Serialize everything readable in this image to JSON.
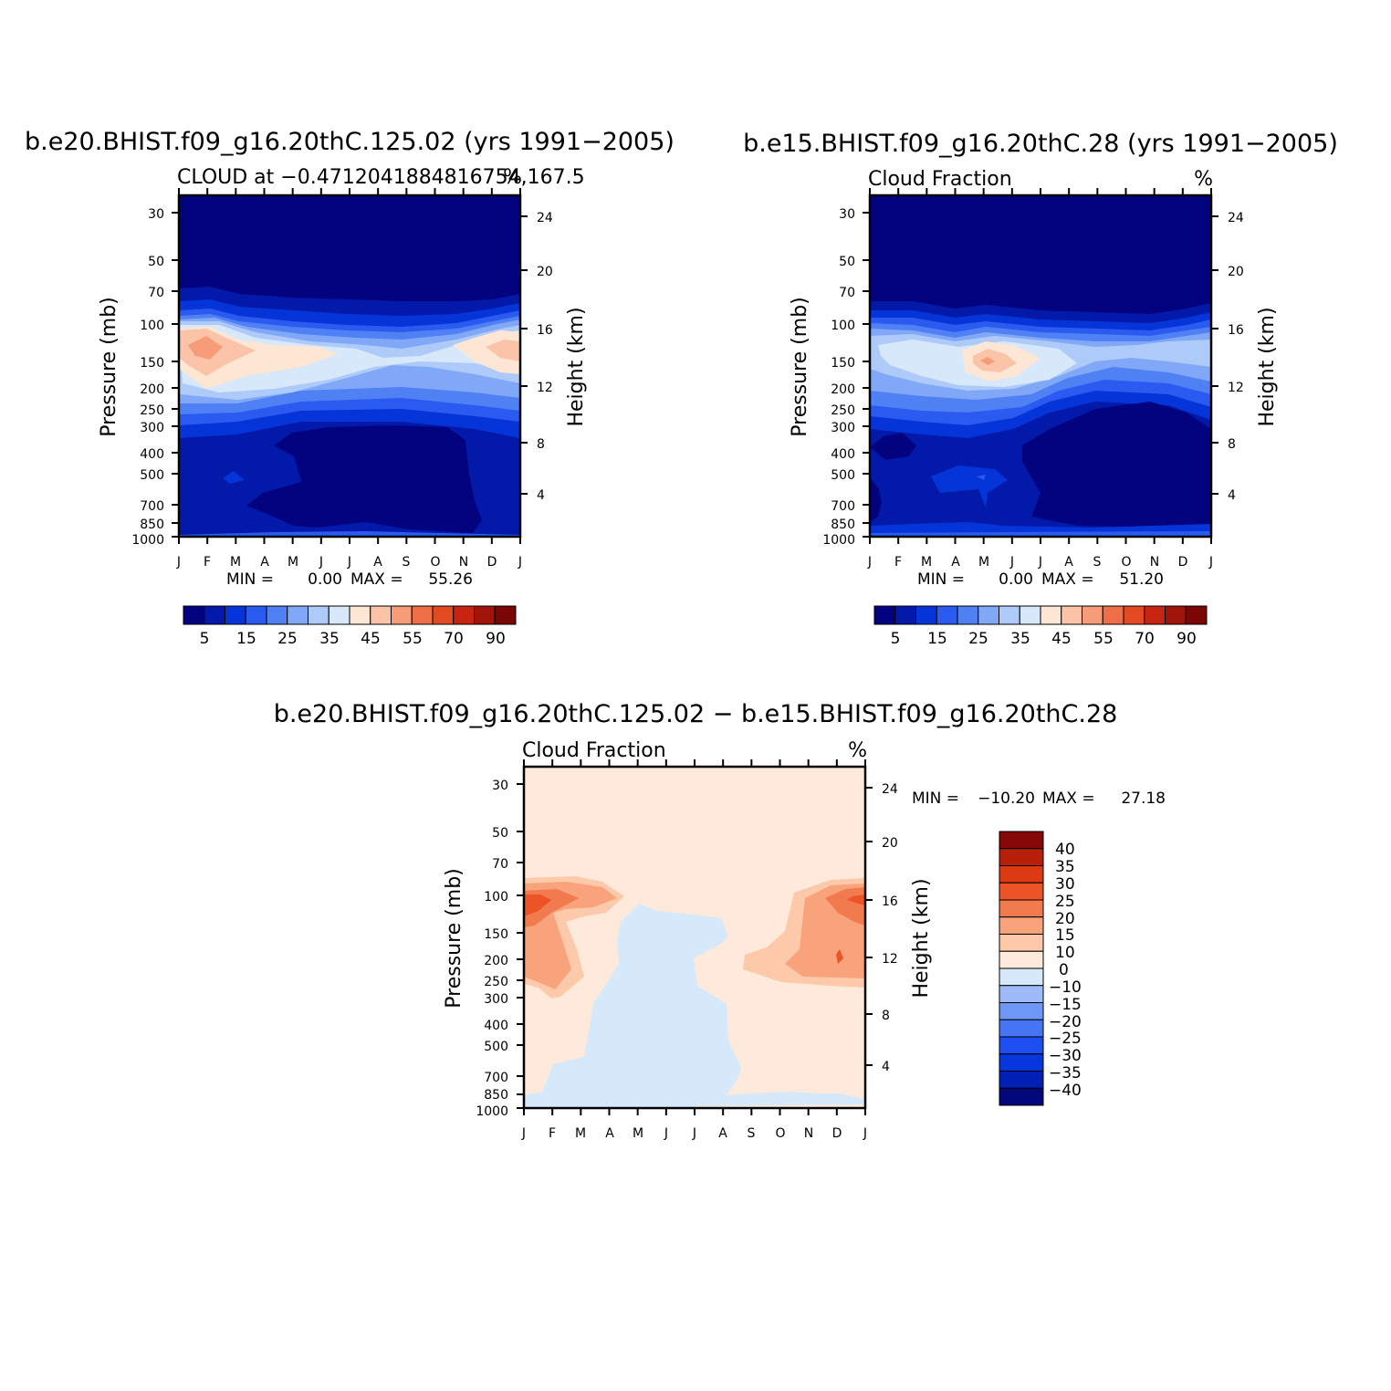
{
  "chart_data": [
    {
      "type": "contour",
      "id": "top-left",
      "title": "b.e20.BHIST.f09_g16.20thC.125.02 (yrs 1991−2005)",
      "subtitle_left": "CLOUD at −0.4712041884816754,167.5",
      "subtitle_right": "%",
      "ylabel": "Pressure (mb)",
      "y2label": "Height (km)",
      "pressure_ticks": [
        "30",
        "50",
        "70",
        "100",
        "150",
        "200",
        "250",
        "300",
        "400",
        "500",
        "700",
        "850",
        "1000"
      ],
      "height_ticks": [
        "24",
        "20",
        "16",
        "12",
        "8",
        "4"
      ],
      "months": [
        "J",
        "F",
        "M",
        "A",
        "M",
        "J",
        "J",
        "A",
        "S",
        "O",
        "N",
        "D",
        "J"
      ],
      "min_label": "MIN =",
      "min_value": "0.00",
      "max_label": "MAX =",
      "max_value": "55.26",
      "colorbar_labels": [
        "5",
        "15",
        "25",
        "35",
        "45",
        "55",
        "70",
        "90"
      ],
      "contour_levels": [
        5,
        10,
        15,
        20,
        25,
        30,
        35,
        40,
        45,
        50,
        55,
        60,
        70,
        80,
        90
      ],
      "cloud_max_height_hPa": 130,
      "cloud_max_value": 55.26
    },
    {
      "type": "contour",
      "id": "top-right",
      "title": "b.e15.BHIST.f09_g16.20thC.28 (yrs 1991−2005)",
      "subtitle_left": "Cloud Fraction",
      "subtitle_right": "%",
      "ylabel": "Pressure (mb)",
      "y2label": "Height (km)",
      "pressure_ticks": [
        "30",
        "50",
        "70",
        "100",
        "150",
        "200",
        "250",
        "300",
        "400",
        "500",
        "700",
        "850",
        "1000"
      ],
      "height_ticks": [
        "24",
        "20",
        "16",
        "12",
        "8",
        "4"
      ],
      "months": [
        "J",
        "F",
        "M",
        "A",
        "M",
        "J",
        "J",
        "A",
        "S",
        "O",
        "N",
        "D",
        "J"
      ],
      "min_label": "MIN =",
      "min_value": "0.00",
      "max_label": "MAX =",
      "max_value": "51.20",
      "colorbar_labels": [
        "5",
        "15",
        "25",
        "35",
        "45",
        "55",
        "70",
        "90"
      ],
      "contour_levels": [
        5,
        10,
        15,
        20,
        25,
        30,
        35,
        40,
        45,
        50,
        55,
        60,
        70,
        80,
        90
      ],
      "cloud_max_height_hPa": 150,
      "cloud_max_value": 51.2
    },
    {
      "type": "contour",
      "id": "bottom",
      "title": "b.e20.BHIST.f09_g16.20thC.125.02 − b.e15.BHIST.f09_g16.20thC.28",
      "subtitle_left": "Cloud Fraction",
      "subtitle_right": "%",
      "ylabel": "Pressure (mb)",
      "y2label": "Height (km)",
      "pressure_ticks": [
        "30",
        "50",
        "70",
        "100",
        "150",
        "200",
        "250",
        "300",
        "400",
        "500",
        "700",
        "850",
        "1000"
      ],
      "height_ticks": [
        "24",
        "20",
        "16",
        "12",
        "8",
        "4"
      ],
      "months": [
        "J",
        "F",
        "M",
        "A",
        "M",
        "J",
        "J",
        "A",
        "S",
        "O",
        "N",
        "D",
        "J"
      ],
      "min_label": "MIN =",
      "min_value": "−10.20",
      "max_label": "MAX =",
      "max_value": "27.18",
      "colorbar_labels": [
        "40",
        "35",
        "30",
        "25",
        "20",
        "15",
        "10",
        "0",
        "−10",
        "−15",
        "−20",
        "−25",
        "−30",
        "−35",
        "−40"
      ],
      "contour_levels": [
        -40,
        -35,
        -30,
        -25,
        -20,
        -15,
        -10,
        0,
        10,
        15,
        20,
        25,
        30,
        35,
        40
      ]
    }
  ],
  "colors": {
    "abs_scale": [
      "#03037f",
      "#0219a9",
      "#0535d8",
      "#2a5af0",
      "#4f80f4",
      "#80a8f6",
      "#aecaf8",
      "#d8e8fb",
      "#fde6d4",
      "#fbc4a8",
      "#f69c78",
      "#ee6e47",
      "#e44a22",
      "#c82412",
      "#a0140a",
      "#7c0606"
    ],
    "diff_scale": [
      "#02087a",
      "#0220b4",
      "#0537dc",
      "#1d4ef2",
      "#4575f4",
      "#6f97f6",
      "#9dbbf8",
      "#d5e9fb",
      "#fee9da",
      "#fcc9aa",
      "#f9a37c",
      "#f27a4f",
      "#ec5428",
      "#dc3a12",
      "#b8200a",
      "#860808"
    ],
    "axis": "#000000",
    "background": "#ffffff"
  }
}
